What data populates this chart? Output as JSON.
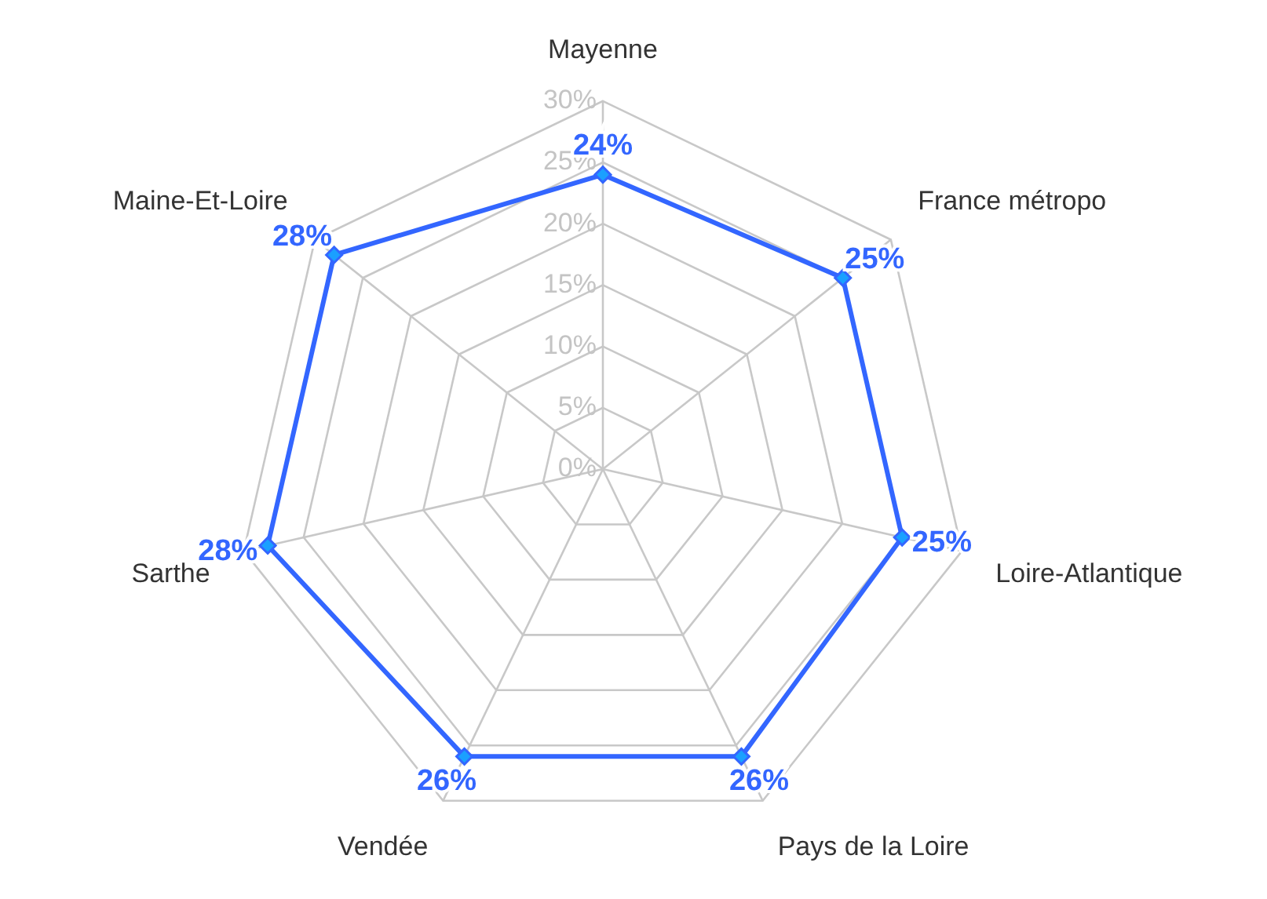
{
  "chart_data": {
    "type": "radar",
    "categories": [
      "Mayenne",
      "France métropo",
      "Loire-Atlantique",
      "Pays de la Loire",
      "Vendée",
      "Sarthe",
      "Maine-Et-Loire"
    ],
    "series": [
      {
        "color": "#3366ff",
        "values": [
          24,
          25,
          25,
          26,
          26,
          28,
          28
        ],
        "value_labels": [
          "24%",
          "25%",
          "25%",
          "26%",
          "26%",
          "28%",
          "28%"
        ]
      }
    ],
    "ylim": [
      0,
      30
    ],
    "yticks": [
      {
        "value": 0,
        "label": "0%"
      },
      {
        "value": 5,
        "label": "5%"
      },
      {
        "value": 10,
        "label": "10%"
      },
      {
        "value": 15,
        "label": "15%"
      },
      {
        "value": 20,
        "label": "20%"
      },
      {
        "value": 25,
        "label": "25%"
      },
      {
        "value": 30,
        "label": "30%"
      }
    ],
    "grid": true,
    "legend": false,
    "marker": "diamond",
    "line_style": "solid"
  }
}
